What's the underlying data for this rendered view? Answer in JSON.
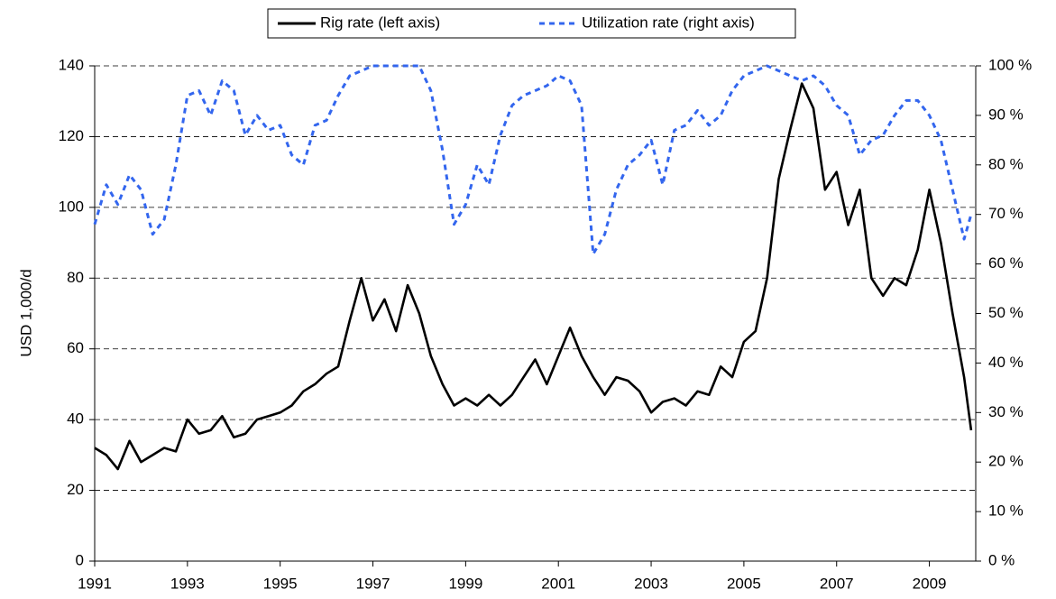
{
  "chart_data": {
    "type": "line",
    "y_label": "USD 1,000/d",
    "x": [
      1991,
      1991.25,
      1991.5,
      1991.75,
      1992,
      1992.25,
      1992.5,
      1992.75,
      1993,
      1993.25,
      1993.5,
      1993.75,
      1994,
      1994.25,
      1994.5,
      1994.75,
      1995,
      1995.25,
      1995.5,
      1995.75,
      1996,
      1996.25,
      1996.5,
      1996.75,
      1997,
      1997.25,
      1997.5,
      1997.75,
      1998,
      1998.25,
      1998.5,
      1998.75,
      1999,
      1999.25,
      1999.5,
      1999.75,
      2000,
      2000.25,
      2000.5,
      2000.75,
      2001,
      2001.25,
      2001.5,
      2001.75,
      2002,
      2002.25,
      2002.5,
      2002.75,
      2003,
      2003.25,
      2003.5,
      2003.75,
      2004,
      2004.25,
      2004.5,
      2004.75,
      2005,
      2005.25,
      2005.5,
      2005.75,
      2006,
      2006.25,
      2006.5,
      2006.75,
      2007,
      2007.25,
      2007.5,
      2007.75,
      2008,
      2008.25,
      2008.5,
      2008.75,
      2009,
      2009.25,
      2009.5,
      2009.75,
      2009.9
    ],
    "series": [
      {
        "name": "Rig rate (left axis)",
        "color": "#000000",
        "dash": "solid",
        "axis": "y",
        "values": [
          32,
          30,
          26,
          34,
          28,
          30,
          32,
          31,
          40,
          36,
          37,
          41,
          35,
          36,
          40,
          41,
          42,
          44,
          48,
          50,
          53,
          55,
          68,
          80,
          68,
          74,
          65,
          78,
          70,
          58,
          50,
          44,
          46,
          44,
          47,
          44,
          47,
          52,
          57,
          50,
          58,
          66,
          58,
          52,
          47,
          52,
          51,
          48,
          42,
          45,
          46,
          44,
          48,
          47,
          55,
          52,
          62,
          65,
          80,
          108,
          122,
          135,
          128,
          105,
          110,
          95,
          105,
          80,
          75,
          80,
          78,
          88,
          105,
          90,
          70,
          52,
          37
        ]
      },
      {
        "name": "Utilization rate (right axis)",
        "color": "#3366ee",
        "dash": "dashed",
        "axis": "y2",
        "values": [
          68,
          76,
          72,
          78,
          75,
          66,
          69,
          80,
          94,
          95,
          90,
          97,
          95,
          86,
          90,
          87,
          88,
          82,
          80,
          88,
          89,
          94,
          98,
          99,
          100,
          100,
          100,
          100,
          100,
          95,
          83,
          68,
          72,
          80,
          76,
          86,
          92,
          94,
          95,
          96,
          98,
          97,
          92,
          62,
          66,
          75,
          80,
          82,
          85,
          76,
          87,
          88,
          91,
          88,
          90,
          95,
          98,
          99,
          100,
          99,
          98,
          97,
          98,
          96,
          92,
          90,
          82,
          85,
          86,
          90,
          93,
          93,
          90,
          85,
          75,
          65,
          70
        ]
      }
    ],
    "xlim": [
      1991,
      2010
    ],
    "xticks": [
      1991,
      1993,
      1995,
      1997,
      1999,
      2001,
      2003,
      2005,
      2007,
      2009
    ],
    "ylim": [
      0,
      140
    ],
    "yticks": [
      0,
      20,
      40,
      60,
      80,
      100,
      120,
      140
    ],
    "y2lim": [
      0,
      100
    ],
    "y2ticks": [
      {
        "value": 0,
        "label": "0 %"
      },
      {
        "value": 10,
        "label": "10 %"
      },
      {
        "value": 20,
        "label": "20 %"
      },
      {
        "value": 30,
        "label": "30 %"
      },
      {
        "value": 40,
        "label": "40 %"
      },
      {
        "value": 50,
        "label": "50 %"
      },
      {
        "value": 60,
        "label": "60 %"
      },
      {
        "value": 70,
        "label": "70 %"
      },
      {
        "value": 80,
        "label": "80 %"
      },
      {
        "value": 90,
        "label": "90 %"
      },
      {
        "value": 100,
        "label": "100 %"
      }
    ],
    "grid": true,
    "legend": "top"
  }
}
